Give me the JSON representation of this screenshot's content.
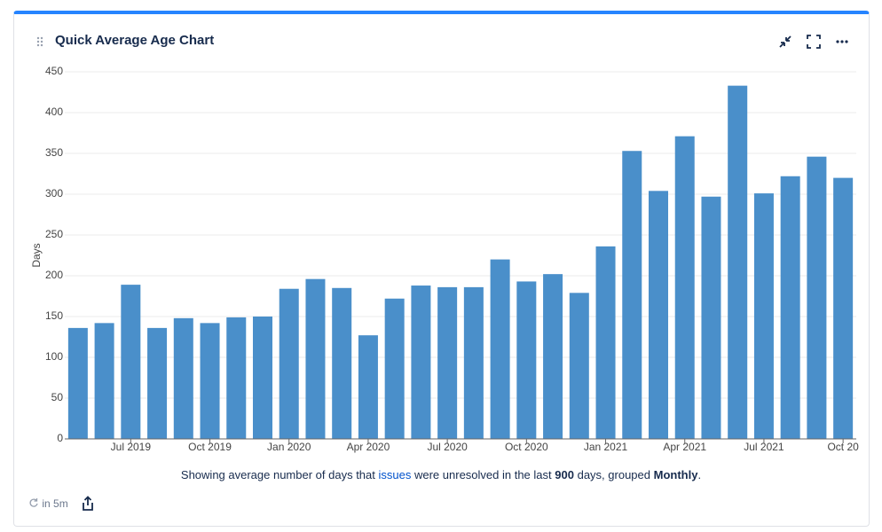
{
  "chart_data": {
    "type": "bar",
    "title": "Quick Average Age Chart",
    "y_label": "Days",
    "categories": [
      null,
      null,
      "Jul 2019",
      null,
      null,
      "Oct 2019",
      null,
      null,
      "Jan 2020",
      null,
      null,
      "Apr 2020",
      null,
      null,
      "Jul 2020",
      null,
      null,
      "Oct 2020",
      null,
      null,
      "Jan 2021",
      null,
      null,
      "Apr 2021",
      null,
      null,
      "Jul 2021",
      null,
      null,
      "Oct 20"
    ],
    "values": [
      136,
      142,
      189,
      136,
      148,
      142,
      149,
      150,
      184,
      196,
      185,
      127,
      172,
      188,
      186,
      186,
      220,
      193,
      202,
      179,
      236,
      353,
      304,
      371,
      297,
      433,
      301,
      322,
      346,
      320
    ],
    "color": "#4a8fca",
    "ylim": [
      0,
      450
    ],
    "yticks": [
      0,
      50,
      100,
      150,
      200,
      250,
      300,
      350,
      400,
      450
    ],
    "grid": true
  },
  "caption": {
    "before": "Showing average number of days that",
    "link": "issues",
    "middle": "were unresolved in the last",
    "days": 900,
    "after": "days, grouped",
    "grouping": "Monthly",
    "end": "."
  },
  "footer": {
    "refresh": "in 5m"
  }
}
